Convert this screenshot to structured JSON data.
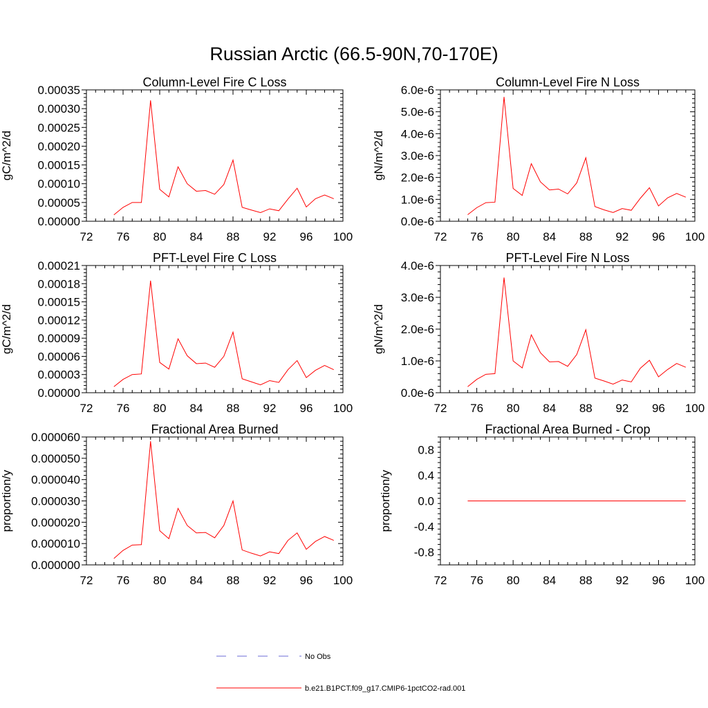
{
  "title": "Russian Arctic (66.5-90N,70-170E)",
  "legend": [
    {
      "label": "No Obs",
      "color": "#6b6bd6",
      "style": "dashed"
    },
    {
      "label": "b.e21.B1PCT.f09_g17.CMIP6-1pctCO2-rad.001",
      "color": "#ff0000",
      "style": "solid"
    }
  ],
  "chart_data": [
    {
      "type": "line",
      "title": "Column-Level Fire C Loss",
      "ylabel": "gC/m^2/d",
      "xlim": [
        72,
        100
      ],
      "ylim": [
        0,
        0.00035
      ],
      "xticks": [
        "72",
        "76",
        "80",
        "84",
        "88",
        "92",
        "96",
        "100"
      ],
      "xtick_values": [
        72,
        76,
        80,
        84,
        88,
        92,
        96,
        100
      ],
      "yticks": [
        "0.00000",
        "0.00005",
        "0.00010",
        "0.00015",
        "0.00020",
        "0.00025",
        "0.00030",
        "0.00035"
      ],
      "ytick_values": [
        0,
        5e-05,
        0.0001,
        0.00015,
        0.0002,
        0.00025,
        0.0003,
        0.00035
      ],
      "series": [
        {
          "name": "b.e21.B1PCT.f09_g17.CMIP6-1pctCO2-rad.001",
          "color": "#ff0000",
          "x": [
            75,
            76,
            77,
            78,
            79,
            80,
            81,
            82,
            83,
            84,
            85,
            86,
            87,
            88,
            89,
            90,
            91,
            92,
            93,
            94,
            95,
            96,
            97,
            98,
            99
          ],
          "values": [
            1.7e-05,
            3.7e-05,
            5e-05,
            5e-05,
            0.000322,
            8.5e-05,
            6.5e-05,
            0.000145,
            0.0001,
            8e-05,
            8.2e-05,
            7.2e-05,
            9.8e-05,
            0.000163,
            3.7e-05,
            3e-05,
            2.3e-05,
            3.3e-05,
            2.8e-05,
            5.9e-05,
            8.8e-05,
            3.8e-05,
            6e-05,
            7e-05,
            6e-05
          ]
        }
      ]
    },
    {
      "type": "line",
      "title": "Column-Level Fire N Loss",
      "ylabel": "gN/m^2/d",
      "xlim": [
        72,
        100
      ],
      "ylim": [
        0,
        6e-06
      ],
      "xticks": [
        "72",
        "76",
        "80",
        "84",
        "88",
        "92",
        "96",
        "100"
      ],
      "xtick_values": [
        72,
        76,
        80,
        84,
        88,
        92,
        96,
        100
      ],
      "yticks": [
        "0.0e-6",
        "1.0e-6",
        "2.0e-6",
        "3.0e-6",
        "4.0e-6",
        "5.0e-6",
        "6.0e-6"
      ],
      "ytick_values": [
        0,
        1e-06,
        2e-06,
        3e-06,
        4e-06,
        5e-06,
        6e-06
      ],
      "series": [
        {
          "name": "b.e21.B1PCT.f09_g17.CMIP6-1pctCO2-rad.001",
          "color": "#ff0000",
          "x": [
            75,
            76,
            77,
            78,
            79,
            80,
            81,
            82,
            83,
            84,
            85,
            86,
            87,
            88,
            89,
            90,
            91,
            92,
            93,
            94,
            95,
            96,
            97,
            98,
            99
          ],
          "values": [
            3e-07,
            6.2e-07,
            8.5e-07,
            8.7e-07,
            5.68e-06,
            1.5e-06,
            1.18e-06,
            2.63e-06,
            1.8e-06,
            1.43e-06,
            1.47e-06,
            1.25e-06,
            1.75e-06,
            2.9e-06,
            6.7e-07,
            5.2e-07,
            4e-07,
            5.8e-07,
            5e-07,
            1.05e-06,
            1.53e-06,
            7e-07,
            1.07e-06,
            1.27e-06,
            1.1e-06
          ]
        }
      ]
    },
    {
      "type": "line",
      "title": "PFT-Level Fire C Loss",
      "ylabel": "gC/m^2/d",
      "xlim": [
        72,
        100
      ],
      "ylim": [
        0,
        0.00021
      ],
      "xticks": [
        "72",
        "76",
        "80",
        "84",
        "88",
        "92",
        "96",
        "100"
      ],
      "xtick_values": [
        72,
        76,
        80,
        84,
        88,
        92,
        96,
        100
      ],
      "yticks": [
        "0.00000",
        "0.00003",
        "0.00006",
        "0.00009",
        "0.00012",
        "0.00015",
        "0.00018",
        "0.00021"
      ],
      "ytick_values": [
        0,
        3e-05,
        6e-05,
        9e-05,
        0.00012,
        0.00015,
        0.00018,
        0.00021
      ],
      "series": [
        {
          "name": "b.e21.B1PCT.f09_g17.CMIP6-1pctCO2-rad.001",
          "color": "#ff0000",
          "x": [
            75,
            76,
            77,
            78,
            79,
            80,
            81,
            82,
            83,
            84,
            85,
            86,
            87,
            88,
            89,
            90,
            91,
            92,
            93,
            94,
            95,
            96,
            97,
            98,
            99
          ],
          "values": [
            1e-05,
            2.2e-05,
            3e-05,
            3.1e-05,
            0.000185,
            5e-05,
            3.9e-05,
            8.9e-05,
            6.1e-05,
            4.8e-05,
            4.9e-05,
            4.2e-05,
            6e-05,
            0.0001,
            2.3e-05,
            1.8e-05,
            1.3e-05,
            2e-05,
            1.7e-05,
            3.8e-05,
            5.3e-05,
            2.5e-05,
            3.7e-05,
            4.5e-05,
            3.8e-05
          ]
        }
      ]
    },
    {
      "type": "line",
      "title": "PFT-Level Fire N Loss",
      "ylabel": "gN/m^2/d",
      "xlim": [
        72,
        100
      ],
      "ylim": [
        0,
        4e-06
      ],
      "xticks": [
        "72",
        "76",
        "80",
        "84",
        "88",
        "92",
        "96",
        "100"
      ],
      "xtick_values": [
        72,
        76,
        80,
        84,
        88,
        92,
        96,
        100
      ],
      "yticks": [
        "0.0e-6",
        "1.0e-6",
        "2.0e-6",
        "3.0e-6",
        "4.0e-6"
      ],
      "ytick_values": [
        0,
        1e-06,
        2e-06,
        3e-06,
        4e-06
      ],
      "series": [
        {
          "name": "b.e21.B1PCT.f09_g17.CMIP6-1pctCO2-rad.001",
          "color": "#ff0000",
          "x": [
            75,
            76,
            77,
            78,
            79,
            80,
            81,
            82,
            83,
            84,
            85,
            86,
            87,
            88,
            89,
            90,
            91,
            92,
            93,
            94,
            95,
            96,
            97,
            98,
            99
          ],
          "values": [
            1.9e-07,
            4.2e-07,
            5.8e-07,
            6e-07,
            3.62e-06,
            1e-06,
            7.8e-07,
            1.82e-06,
            1.26e-06,
            9.7e-07,
            9.8e-07,
            8.3e-07,
            1.2e-06,
            1.98e-06,
            4.6e-07,
            3.7e-07,
            2.7e-07,
            4e-07,
            3.4e-07,
            7.7e-07,
            1.02e-06,
            5e-07,
            7.3e-07,
            9.2e-07,
            8e-07
          ]
        }
      ]
    },
    {
      "type": "line",
      "title": "Fractional Area Burned",
      "ylabel": "proportion/y",
      "xlim": [
        72,
        100
      ],
      "ylim": [
        0,
        6e-05
      ],
      "xticks": [
        "72",
        "76",
        "80",
        "84",
        "88",
        "92",
        "96",
        "100"
      ],
      "xtick_values": [
        72,
        76,
        80,
        84,
        88,
        92,
        96,
        100
      ],
      "yticks": [
        "0.000000",
        "0.000010",
        "0.000020",
        "0.000030",
        "0.000040",
        "0.000050",
        "0.000060"
      ],
      "ytick_values": [
        0,
        1e-05,
        2e-05,
        3e-05,
        4e-05,
        5e-05,
        6e-05
      ],
      "series": [
        {
          "name": "b.e21.B1PCT.f09_g17.CMIP6-1pctCO2-rad.001",
          "color": "#ff0000",
          "x": [
            75,
            76,
            77,
            78,
            79,
            80,
            81,
            82,
            83,
            84,
            85,
            86,
            87,
            88,
            89,
            90,
            91,
            92,
            93,
            94,
            95,
            96,
            97,
            98,
            99
          ],
          "values": [
            3e-06,
            6.8e-06,
            9.3e-06,
            9.5e-06,
            5.8e-05,
            1.6e-05,
            1.23e-05,
            2.65e-05,
            1.85e-05,
            1.5e-05,
            1.52e-05,
            1.27e-05,
            1.85e-05,
            3e-05,
            7e-06,
            5.5e-06,
            4.2e-06,
            6.1e-06,
            5.3e-06,
            1.15e-05,
            1.5e-05,
            7.3e-06,
            1.1e-05,
            1.33e-05,
            1.15e-05
          ]
        }
      ]
    },
    {
      "type": "line",
      "title": "Fractional Area Burned - Crop",
      "ylabel": "proportion/y",
      "xlim": [
        72,
        100
      ],
      "ylim": [
        -1,
        1
      ],
      "xticks": [
        "72",
        "76",
        "80",
        "84",
        "88",
        "92",
        "96",
        "100"
      ],
      "xtick_values": [
        72,
        76,
        80,
        84,
        88,
        92,
        96,
        100
      ],
      "yticks": [
        "-0.8",
        "-0.4",
        "0.0",
        "0.4",
        "0.8"
      ],
      "ytick_values": [
        -0.8,
        -0.4,
        0,
        0.4,
        0.8
      ],
      "series": [
        {
          "name": "b.e21.B1PCT.f09_g17.CMIP6-1pctCO2-rad.001",
          "color": "#ff0000",
          "x": [
            75,
            99
          ],
          "values": [
            0,
            0
          ]
        }
      ]
    }
  ]
}
